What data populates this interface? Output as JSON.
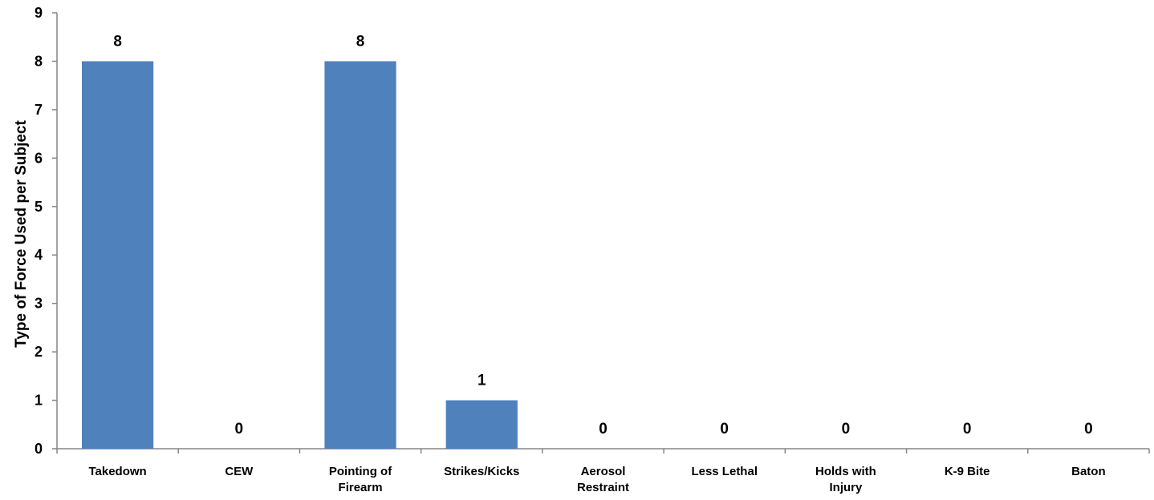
{
  "chart_data": {
    "type": "bar",
    "title": "",
    "xlabel": "",
    "ylabel": "Type of Force Used per Subject",
    "categories": [
      [
        "Takedown"
      ],
      [
        "CEW"
      ],
      [
        "Pointing of",
        "Firearm"
      ],
      [
        "Strikes/Kicks"
      ],
      [
        "Aerosol",
        "Restraint"
      ],
      [
        "Less Lethal"
      ],
      [
        "Holds with",
        "Injury"
      ],
      [
        "K-9 Bite"
      ],
      [
        "Baton"
      ]
    ],
    "values": [
      8,
      0,
      8,
      1,
      0,
      0,
      0,
      0,
      0
    ],
    "ylim": [
      0,
      9
    ],
    "yticks": [
      0,
      1,
      2,
      3,
      4,
      5,
      6,
      7,
      8,
      9
    ],
    "grid": false,
    "legend": "none",
    "colors": {
      "bar": "#4F81BD",
      "axis": "#868686",
      "text": "#000000"
    }
  }
}
